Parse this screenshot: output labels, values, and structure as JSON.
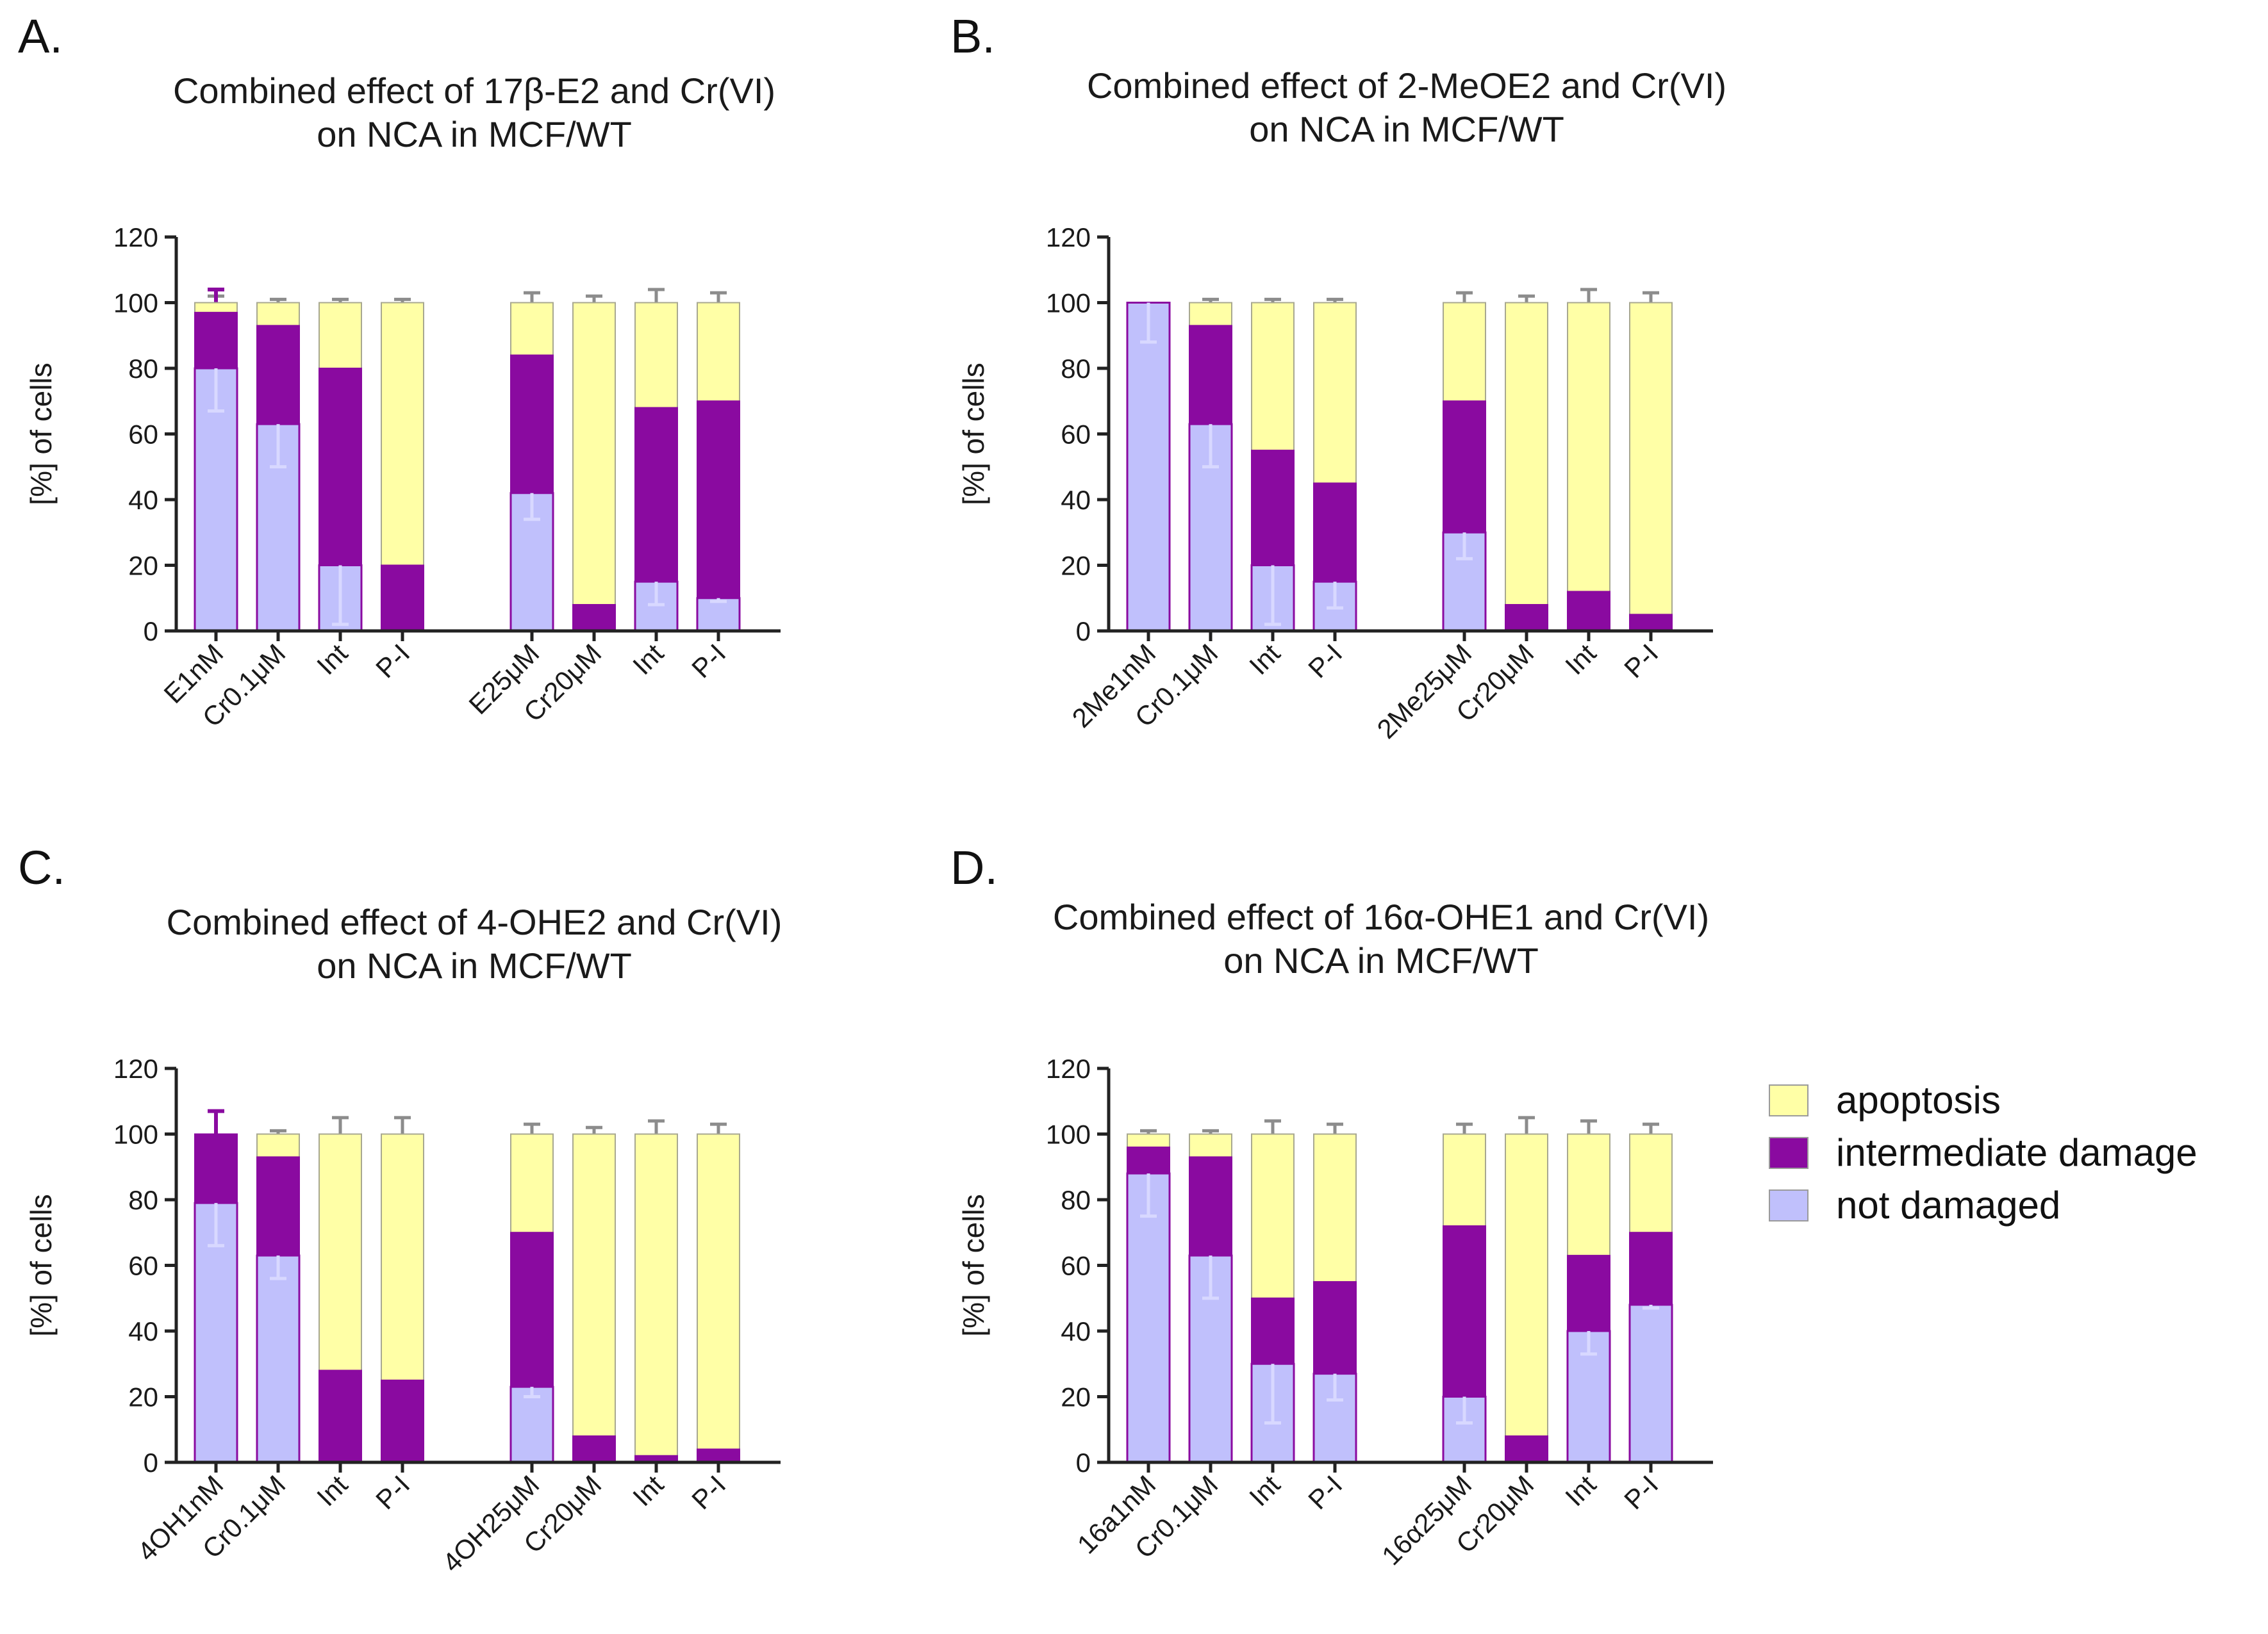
{
  "colors": {
    "apoptosis": "#ffffa6",
    "intermediate": "#8a0aa0",
    "not_damaged": "#c0c0fc",
    "bar_outline": "#8a0aa0",
    "apoptosis_error": "#8c8c8c",
    "intermediate_error": "#8a0aa0",
    "not_damaged_error": "#d8d8ff",
    "axis": "#222222"
  },
  "legend": {
    "items": [
      {
        "key": "apoptosis",
        "label": "apoptosis"
      },
      {
        "key": "intermediate",
        "label": "intermediate damage"
      },
      {
        "key": "not_damaged",
        "label": "not damaged"
      }
    ]
  },
  "panels": [
    {
      "letter": "A.",
      "title_line1": "Combined effect of 17β-E2 and Cr(VI)",
      "title_line2": "on NCA in MCF/WT"
    },
    {
      "letter": "B.",
      "title_line1": "Combined effect of 2-MeOE2 and Cr(VI)",
      "title_line2": "on NCA in MCF/WT"
    },
    {
      "letter": "C.",
      "title_line1": "Combined effect of 4-OHE2 and Cr(VI)",
      "title_line2": "on NCA in MCF/WT"
    },
    {
      "letter": "D.",
      "title_line1": "Combined effect of 16α-OHE1 and Cr(VI)",
      "title_line2": "on NCA in MCF/WT"
    }
  ],
  "chart_data": [
    {
      "type": "bar",
      "stacked": true,
      "title": "Combined effect of 17β-E2 and Cr(VI) on NCA in MCF/WT",
      "xlabel": "",
      "ylabel": "[%] of cells",
      "ylim": [
        0,
        120
      ],
      "yticks": [
        0,
        20,
        40,
        60,
        80,
        100,
        120
      ],
      "categories": [
        "E1nM",
        "Cr0.1μM",
        "Int",
        "P-I",
        "E25μM",
        "Cr20μM",
        "Int",
        "P-I"
      ],
      "series": [
        {
          "name": "not damaged",
          "values": [
            80,
            63,
            20,
            0,
            42,
            0,
            15,
            10
          ],
          "errors": [
            13,
            13,
            18,
            8,
            8,
            5,
            7,
            1
          ]
        },
        {
          "name": "intermediate damage",
          "values": [
            17,
            30,
            60,
            20,
            42,
            8,
            53,
            60
          ],
          "errors": [
            7,
            4,
            3,
            6,
            7,
            4,
            7,
            7
          ]
        },
        {
          "name": "apoptosis",
          "values": [
            3,
            7,
            20,
            80,
            16,
            92,
            32,
            30
          ],
          "errors": [
            2,
            1,
            1,
            1,
            3,
            2,
            4,
            3
          ]
        }
      ]
    },
    {
      "type": "bar",
      "stacked": true,
      "title": "Combined effect of 2-MeOE2 and Cr(VI) on NCA in MCF/WT",
      "xlabel": "",
      "ylabel": "[%] of cells",
      "ylim": [
        0,
        120
      ],
      "yticks": [
        0,
        20,
        40,
        60,
        80,
        100,
        120
      ],
      "categories": [
        "2Me1nM",
        "Cr0.1μM",
        "Int",
        "P-I",
        "2Me25μM",
        "Cr20μM",
        "Int",
        "P-I"
      ],
      "series": [
        {
          "name": "not damaged",
          "values": [
            100,
            63,
            20,
            15,
            30,
            0,
            0,
            0
          ],
          "errors": [
            12,
            13,
            18,
            8,
            8,
            5,
            7,
            2
          ]
        },
        {
          "name": "intermediate damage",
          "values": [
            0,
            30,
            35,
            30,
            40,
            8,
            12,
            5
          ],
          "errors": [
            7,
            4,
            3,
            6,
            7,
            4,
            7,
            7
          ]
        },
        {
          "name": "apoptosis",
          "values": [
            0,
            7,
            45,
            55,
            30,
            92,
            88,
            95
          ],
          "errors": [
            0,
            1,
            1,
            1,
            3,
            2,
            4,
            3
          ]
        }
      ]
    },
    {
      "type": "bar",
      "stacked": true,
      "title": "Combined effect of 4-OHE2 and Cr(VI) on NCA in MCF/WT",
      "xlabel": "",
      "ylabel": "[%] of cells",
      "ylim": [
        0,
        120
      ],
      "yticks": [
        0,
        20,
        40,
        60,
        80,
        100,
        120
      ],
      "categories": [
        "4OH1nM",
        "Cr0.1μM",
        "Int",
        "P-I",
        "4OH25μM",
        "Cr20μM",
        "Int",
        "P-I"
      ],
      "series": [
        {
          "name": "not damaged",
          "values": [
            79,
            63,
            0,
            0,
            23,
            0,
            0,
            0
          ],
          "errors": [
            13,
            7,
            0,
            0,
            3,
            0,
            0,
            0
          ]
        },
        {
          "name": "intermediate damage",
          "values": [
            21,
            30,
            28,
            25,
            47,
            8,
            2,
            4
          ],
          "errors": [
            7,
            4,
            3,
            6,
            7,
            2,
            1,
            1
          ]
        },
        {
          "name": "apoptosis",
          "values": [
            0,
            7,
            72,
            75,
            30,
            92,
            98,
            96
          ],
          "errors": [
            0,
            1,
            5,
            5,
            3,
            2,
            4,
            3
          ]
        }
      ]
    },
    {
      "type": "bar",
      "stacked": true,
      "title": "Combined effect of 16α-OHE1 and Cr(VI) on NCA in MCF/WT",
      "xlabel": "",
      "ylabel": "[%] of cells",
      "ylim": [
        0,
        120
      ],
      "yticks": [
        0,
        20,
        40,
        60,
        80,
        100,
        120
      ],
      "categories": [
        "16a1nM",
        "Cr0.1μM",
        "Int",
        "P-I",
        "16α25μM",
        "Cr20μM",
        "Int",
        "P-I"
      ],
      "series": [
        {
          "name": "not damaged",
          "values": [
            88,
            63,
            30,
            27,
            20,
            0,
            40,
            48
          ],
          "errors": [
            13,
            13,
            18,
            8,
            8,
            0,
            7,
            1
          ]
        },
        {
          "name": "intermediate damage",
          "values": [
            8,
            30,
            20,
            28,
            52,
            8,
            23,
            22
          ],
          "errors": [
            3,
            4,
            3,
            6,
            7,
            2,
            3,
            3
          ]
        },
        {
          "name": "apoptosis",
          "values": [
            4,
            7,
            50,
            45,
            28,
            92,
            37,
            30
          ],
          "errors": [
            1,
            1,
            4,
            3,
            3,
            5,
            4,
            3
          ]
        }
      ]
    }
  ]
}
